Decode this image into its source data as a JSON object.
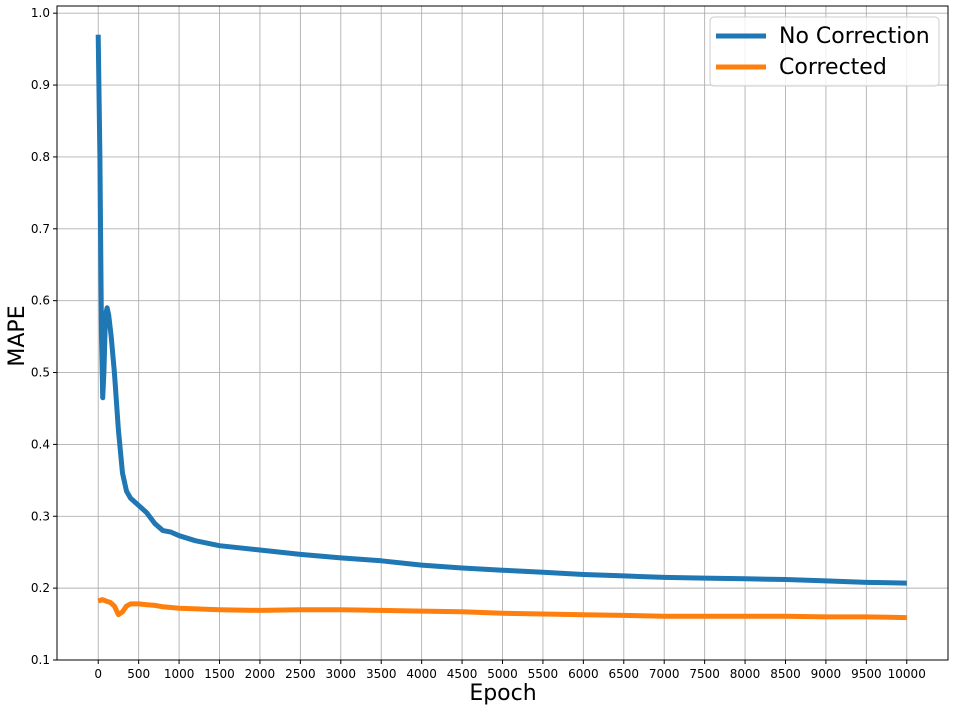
{
  "chart_data": {
    "type": "line",
    "title": "",
    "xlabel": "Epoch",
    "ylabel": "MAPE",
    "xlim": [
      -510,
      10510
    ],
    "ylim": [
      0.1,
      1.01
    ],
    "grid": true,
    "legend_position": "top-right",
    "x_ticks": [
      0,
      500,
      1000,
      1500,
      2000,
      2500,
      3000,
      3500,
      4000,
      4500,
      5000,
      5500,
      6000,
      6500,
      7000,
      7500,
      8000,
      8500,
      9000,
      9500,
      10000
    ],
    "y_ticks": [
      0.1,
      0.2,
      0.3,
      0.4,
      0.5,
      0.6,
      0.7,
      0.8,
      0.9,
      1.0
    ],
    "series": [
      {
        "name": "No Correction",
        "color": "#1f77b4",
        "x": [
          0,
          20,
          40,
          55,
          70,
          90,
          110,
          130,
          160,
          200,
          250,
          300,
          350,
          400,
          500,
          600,
          700,
          800,
          900,
          1000,
          1200,
          1500,
          2000,
          2500,
          3000,
          3500,
          4000,
          4500,
          5000,
          5500,
          6000,
          6500,
          7000,
          7500,
          8000,
          8500,
          9000,
          9500,
          10000
        ],
        "y": [
          0.97,
          0.8,
          0.55,
          0.465,
          0.5,
          0.58,
          0.59,
          0.58,
          0.55,
          0.5,
          0.42,
          0.36,
          0.335,
          0.325,
          0.315,
          0.305,
          0.29,
          0.28,
          0.278,
          0.273,
          0.266,
          0.259,
          0.253,
          0.247,
          0.242,
          0.238,
          0.232,
          0.228,
          0.225,
          0.222,
          0.219,
          0.217,
          0.215,
          0.214,
          0.213,
          0.212,
          0.21,
          0.208,
          0.207
        ]
      },
      {
        "name": "Corrected",
        "color": "#ff7f0e",
        "x": [
          0,
          50,
          100,
          150,
          200,
          250,
          300,
          350,
          400,
          500,
          600,
          700,
          800,
          1000,
          1500,
          2000,
          2500,
          3000,
          3500,
          4000,
          4500,
          5000,
          5500,
          6000,
          6500,
          7000,
          7500,
          8000,
          8500,
          9000,
          9500,
          10000
        ],
        "y": [
          0.182,
          0.184,
          0.182,
          0.18,
          0.175,
          0.163,
          0.167,
          0.175,
          0.178,
          0.178,
          0.177,
          0.176,
          0.174,
          0.172,
          0.17,
          0.169,
          0.17,
          0.17,
          0.169,
          0.168,
          0.167,
          0.165,
          0.164,
          0.163,
          0.162,
          0.161,
          0.161,
          0.161,
          0.161,
          0.16,
          0.16,
          0.159
        ]
      }
    ]
  }
}
